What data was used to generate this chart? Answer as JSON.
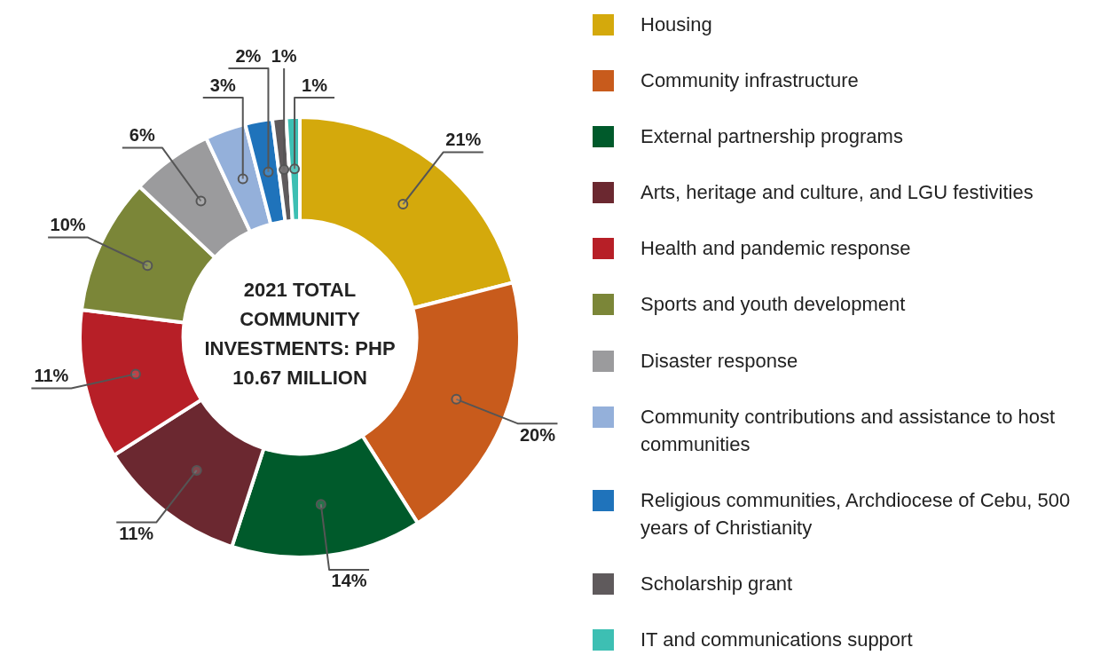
{
  "chart_data": {
    "type": "donut",
    "title": "2021 TOTAL COMMUNITY INVESTMENTS: PHP 10.67 MILLION",
    "categories": [
      "Housing",
      "Community infrastructure",
      "External partnership programs",
      "Arts, heritage and culture, and LGU festivities",
      "Health and pandemic response",
      "Sports and youth development",
      "Disaster response",
      "Community contributions and assistance to host communities",
      "Religious communities, Archdiocese of Cebu, 500 years of Christianity",
      "Scholarship grant",
      "IT and communications support"
    ],
    "values": [
      21,
      20,
      14,
      11,
      11,
      10,
      6,
      3,
      2,
      1,
      1
    ],
    "value_labels": [
      "21%",
      "20%",
      "14%",
      "11%",
      "11%",
      "10%",
      "6%",
      "3%",
      "2%",
      "1%",
      "1%"
    ],
    "colors": [
      "#d4a90c",
      "#c85b1c",
      "#005a2b",
      "#6b2830",
      "#b71f27",
      "#7b8638",
      "#9b9b9d",
      "#94b0da",
      "#1f73bb",
      "#5f5a5c",
      "#3dbfb3"
    ],
    "legend": "right"
  }
}
